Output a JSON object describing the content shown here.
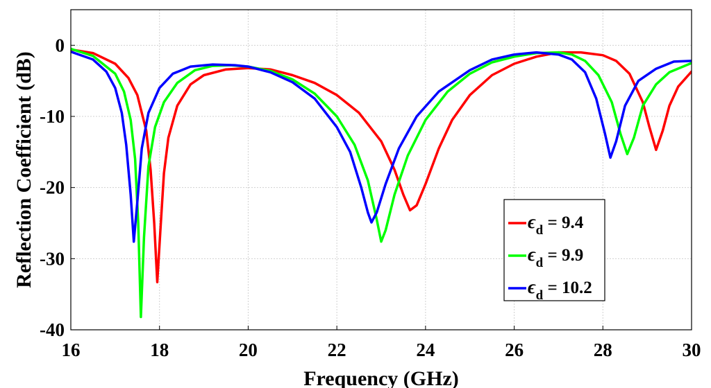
{
  "chart_data": {
    "type": "line",
    "title": "",
    "xlabel": "Frequency (GHz)",
    "ylabel": "Reflection Coefficient (dB)",
    "xlim": [
      16,
      30
    ],
    "ylim": [
      -40,
      5
    ],
    "xticks": [
      16,
      18,
      20,
      22,
      24,
      26,
      28,
      30
    ],
    "yticks": [
      0,
      -10,
      -20,
      -30,
      -40
    ],
    "grid": true,
    "legend_position": "bottom-right",
    "series": [
      {
        "symbol": "ϵ",
        "subscript": "d",
        "value_text": " = 9.4",
        "color": "#ff0000",
        "points": [
          [
            16.0,
            -0.6
          ],
          [
            16.5,
            -1.1
          ],
          [
            17.0,
            -2.6
          ],
          [
            17.3,
            -4.6
          ],
          [
            17.5,
            -7.0
          ],
          [
            17.7,
            -12.0
          ],
          [
            17.8,
            -17.5
          ],
          [
            17.88,
            -25.0
          ],
          [
            17.95,
            -33.3
          ],
          [
            18.02,
            -26.0
          ],
          [
            18.1,
            -18.0
          ],
          [
            18.2,
            -13.0
          ],
          [
            18.4,
            -8.5
          ],
          [
            18.7,
            -5.5
          ],
          [
            19.0,
            -4.2
          ],
          [
            19.5,
            -3.4
          ],
          [
            20.0,
            -3.2
          ],
          [
            20.5,
            -3.4
          ],
          [
            21.0,
            -4.2
          ],
          [
            21.5,
            -5.3
          ],
          [
            22.0,
            -7.0
          ],
          [
            22.5,
            -9.5
          ],
          [
            23.0,
            -13.5
          ],
          [
            23.3,
            -17.5
          ],
          [
            23.5,
            -21.0
          ],
          [
            23.65,
            -23.2
          ],
          [
            23.8,
            -22.5
          ],
          [
            24.0,
            -19.5
          ],
          [
            24.3,
            -14.5
          ],
          [
            24.6,
            -10.5
          ],
          [
            25.0,
            -7.0
          ],
          [
            25.5,
            -4.2
          ],
          [
            26.0,
            -2.6
          ],
          [
            26.5,
            -1.6
          ],
          [
            27.0,
            -1.0
          ],
          [
            27.5,
            -1.0
          ],
          [
            28.0,
            -1.4
          ],
          [
            28.3,
            -2.2
          ],
          [
            28.6,
            -4.0
          ],
          [
            28.9,
            -8.0
          ],
          [
            29.05,
            -11.5
          ],
          [
            29.2,
            -14.7
          ],
          [
            29.35,
            -12.0
          ],
          [
            29.5,
            -8.5
          ],
          [
            29.7,
            -5.8
          ],
          [
            30.0,
            -3.7
          ]
        ]
      },
      {
        "symbol": "ϵ",
        "subscript": "d",
        "value_text": " = 9.9",
        "color": "#00ff00",
        "points": [
          [
            16.0,
            -0.5
          ],
          [
            16.5,
            -1.5
          ],
          [
            17.0,
            -4.0
          ],
          [
            17.2,
            -6.5
          ],
          [
            17.35,
            -10.5
          ],
          [
            17.45,
            -16.0
          ],
          [
            17.52,
            -25.0
          ],
          [
            17.58,
            -38.2
          ],
          [
            17.65,
            -27.0
          ],
          [
            17.75,
            -17.0
          ],
          [
            17.9,
            -11.5
          ],
          [
            18.1,
            -8.0
          ],
          [
            18.4,
            -5.3
          ],
          [
            18.8,
            -3.5
          ],
          [
            19.2,
            -2.9
          ],
          [
            19.6,
            -2.8
          ],
          [
            20.0,
            -3.0
          ],
          [
            20.5,
            -3.6
          ],
          [
            21.0,
            -4.8
          ],
          [
            21.5,
            -6.8
          ],
          [
            22.0,
            -10.0
          ],
          [
            22.4,
            -14.0
          ],
          [
            22.7,
            -19.0
          ],
          [
            22.9,
            -24.5
          ],
          [
            23.0,
            -27.6
          ],
          [
            23.1,
            -26.0
          ],
          [
            23.3,
            -21.0
          ],
          [
            23.6,
            -15.5
          ],
          [
            24.0,
            -10.5
          ],
          [
            24.5,
            -6.5
          ],
          [
            25.0,
            -4.0
          ],
          [
            25.5,
            -2.4
          ],
          [
            26.0,
            -1.6
          ],
          [
            26.5,
            -1.1
          ],
          [
            27.0,
            -1.0
          ],
          [
            27.3,
            -1.3
          ],
          [
            27.6,
            -2.2
          ],
          [
            27.9,
            -4.2
          ],
          [
            28.2,
            -8.0
          ],
          [
            28.4,
            -12.5
          ],
          [
            28.55,
            -15.3
          ],
          [
            28.7,
            -13.0
          ],
          [
            28.9,
            -8.5
          ],
          [
            29.2,
            -5.5
          ],
          [
            29.5,
            -3.8
          ],
          [
            30.0,
            -2.5
          ]
        ]
      },
      {
        "symbol": "ϵ",
        "subscript": "d",
        "value_text": " = 10.2",
        "color": "#0000ff",
        "points": [
          [
            16.0,
            -0.9
          ],
          [
            16.5,
            -2.0
          ],
          [
            16.8,
            -3.7
          ],
          [
            17.0,
            -6.0
          ],
          [
            17.15,
            -9.5
          ],
          [
            17.25,
            -14.0
          ],
          [
            17.35,
            -21.0
          ],
          [
            17.42,
            -27.6
          ],
          [
            17.5,
            -22.0
          ],
          [
            17.6,
            -14.5
          ],
          [
            17.75,
            -9.5
          ],
          [
            18.0,
            -6.0
          ],
          [
            18.3,
            -4.0
          ],
          [
            18.7,
            -3.0
          ],
          [
            19.2,
            -2.7
          ],
          [
            19.7,
            -2.8
          ],
          [
            20.0,
            -3.0
          ],
          [
            20.5,
            -3.8
          ],
          [
            21.0,
            -5.2
          ],
          [
            21.5,
            -7.5
          ],
          [
            22.0,
            -11.5
          ],
          [
            22.3,
            -15.0
          ],
          [
            22.55,
            -20.0
          ],
          [
            22.7,
            -23.5
          ],
          [
            22.78,
            -24.9
          ],
          [
            22.9,
            -23.5
          ],
          [
            23.1,
            -19.5
          ],
          [
            23.4,
            -14.5
          ],
          [
            23.8,
            -10.0
          ],
          [
            24.3,
            -6.5
          ],
          [
            25.0,
            -3.5
          ],
          [
            25.5,
            -2.0
          ],
          [
            26.0,
            -1.3
          ],
          [
            26.5,
            -1.0
          ],
          [
            27.0,
            -1.3
          ],
          [
            27.3,
            -2.0
          ],
          [
            27.6,
            -3.8
          ],
          [
            27.85,
            -7.5
          ],
          [
            28.05,
            -12.5
          ],
          [
            28.17,
            -15.8
          ],
          [
            28.3,
            -13.5
          ],
          [
            28.5,
            -8.5
          ],
          [
            28.8,
            -5.0
          ],
          [
            29.2,
            -3.3
          ],
          [
            29.6,
            -2.3
          ],
          [
            30.0,
            -2.2
          ]
        ]
      }
    ]
  }
}
